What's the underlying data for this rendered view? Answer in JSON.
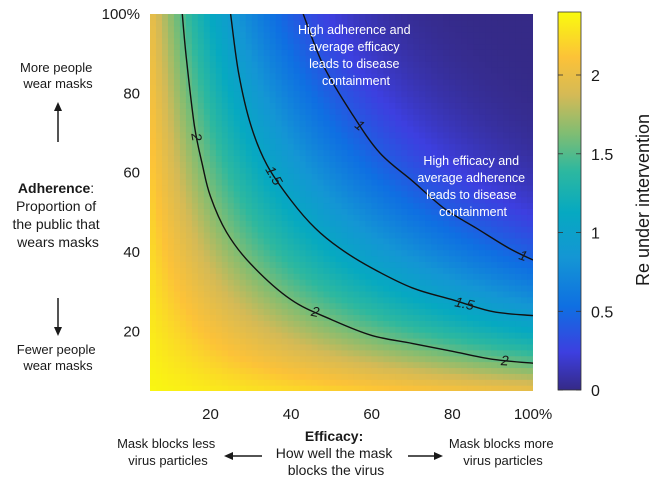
{
  "chart_data": {
    "type": "heatmap",
    "x": {
      "range": [
        5,
        100
      ],
      "ticks": [
        20,
        40,
        60,
        80,
        100
      ],
      "tick_labels": [
        "20",
        "40",
        "60",
        "80",
        "100%"
      ],
      "label_title": "Efficacy:",
      "label_lines": [
        "How well the mask",
        "blocks the virus"
      ],
      "left_note": [
        "Mask blocks less",
        "virus particles"
      ],
      "right_note": [
        "Mask blocks more",
        "virus particles"
      ]
    },
    "y": {
      "range": [
        5,
        100
      ],
      "ticks": [
        20,
        40,
        60,
        80,
        100
      ],
      "tick_labels": [
        "20",
        "40",
        "60",
        "80",
        "100%"
      ],
      "label_title": "Adherence",
      "label_lines": [
        "Proportion of",
        "the public that",
        "wears masks"
      ],
      "top_note": [
        "More people",
        "wear masks"
      ],
      "bottom_note": [
        "Fewer people",
        "wear masks"
      ]
    },
    "colorbar": {
      "label": "Re under intervention",
      "range": [
        0,
        2.4
      ],
      "ticks": [
        0,
        0.5,
        1,
        1.5,
        2
      ],
      "tick_labels": [
        "0",
        "0.5",
        "1",
        "1.5",
        "2"
      ],
      "colormap": "parula"
    },
    "contours": [
      {
        "level": 2,
        "label": "2",
        "x": [
          13,
          14,
          16,
          18,
          20,
          24,
          30,
          40,
          50,
          60,
          70,
          80,
          90,
          100
        ],
        "y": [
          100,
          89,
          72,
          62,
          54,
          45,
          37,
          28,
          23,
          19,
          17,
          15,
          13,
          12
        ]
      },
      {
        "level": 1.5,
        "label": "1.5",
        "x": [
          25,
          27,
          30,
          34,
          40,
          46,
          52,
          60,
          70,
          80,
          90,
          100
        ],
        "y": [
          100,
          85,
          72,
          62,
          53,
          46,
          41,
          36,
          31,
          28,
          25,
          24
        ]
      },
      {
        "level": 1,
        "label": "1",
        "x": [
          43,
          48,
          55,
          62,
          70,
          78,
          86,
          94,
          100
        ],
        "y": [
          100,
          87,
          75,
          65,
          58,
          51,
          46,
          41,
          38
        ]
      }
    ],
    "annotations": [
      {
        "lines": [
          "High adherence and",
          "average efficacy",
          "leads to disease",
          "containment"
        ]
      },
      {
        "lines": [
          "High efficacy and",
          "average adherence",
          "leads to disease",
          "containment"
        ]
      }
    ]
  }
}
